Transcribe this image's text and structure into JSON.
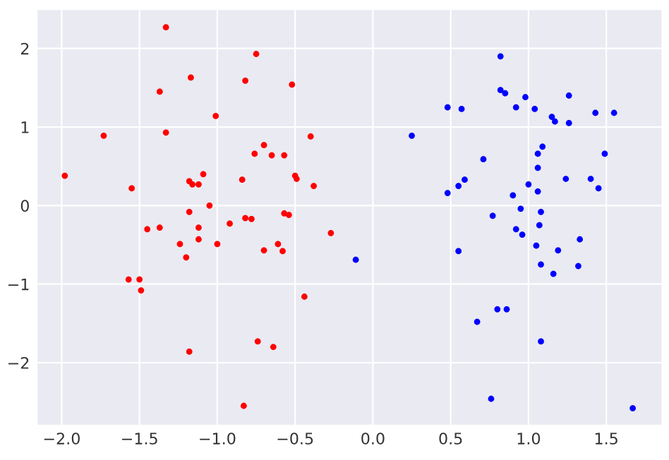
{
  "chart_data": {
    "type": "scatter",
    "xlim": [
      -2.16,
      1.86
    ],
    "ylim": [
      -2.8,
      2.5
    ],
    "xticks": [
      {
        "value": -2.0,
        "label": "−2.0"
      },
      {
        "value": -1.5,
        "label": "−1.5"
      },
      {
        "value": -1.0,
        "label": "−1.0"
      },
      {
        "value": -0.5,
        "label": "−0.5"
      },
      {
        "value": 0.0,
        "label": "0.0"
      },
      {
        "value": 0.5,
        "label": "0.5"
      },
      {
        "value": 1.0,
        "label": "1.0"
      },
      {
        "value": 1.5,
        "label": "1.5"
      }
    ],
    "yticks": [
      {
        "value": -2,
        "label": "−2"
      },
      {
        "value": -1,
        "label": "−1"
      },
      0,
      1,
      2
    ],
    "grid": true,
    "marker": "circle",
    "series": [
      {
        "color": "#ff0000",
        "x": [
          -1.33,
          -0.75,
          -1.17,
          -0.82,
          -0.52,
          -1.37,
          -1.01,
          -1.73,
          -1.33,
          -0.4,
          -0.7,
          -0.76,
          -0.65,
          -0.57,
          -1.98,
          -1.09,
          -0.5,
          -0.49,
          -0.84,
          -1.18,
          -1.16,
          -1.12,
          -0.38,
          -1.55,
          -1.05,
          -1.18,
          -0.57,
          -0.54,
          -0.82,
          -0.78,
          -0.92,
          -0.27,
          -1.45,
          -1.37,
          -1.12,
          -1.12,
          -1.24,
          -1.0,
          -0.61,
          -0.7,
          -0.58,
          -1.2,
          -1.57,
          -1.5,
          -1.49,
          -0.44,
          -0.74,
          -0.64,
          -1.18,
          -0.83
        ],
        "values": [
          2.27,
          1.93,
          1.63,
          1.59,
          1.54,
          1.45,
          1.14,
          0.89,
          0.93,
          0.88,
          0.77,
          0.66,
          0.64,
          0.64,
          0.38,
          0.4,
          0.38,
          0.34,
          0.33,
          0.31,
          0.27,
          0.27,
          0.25,
          0.22,
          0.0,
          -0.08,
          -0.1,
          -0.12,
          -0.16,
          -0.17,
          -0.23,
          -0.35,
          -0.3,
          -0.28,
          -0.28,
          -0.43,
          -0.49,
          -0.49,
          -0.49,
          -0.57,
          -0.58,
          -0.66,
          -0.94,
          -0.94,
          -1.08,
          -1.16,
          -1.73,
          -1.8,
          -1.86,
          -2.55
        ]
      },
      {
        "color": "#0000ff",
        "x": [
          -0.11,
          0.25,
          0.82,
          0.82,
          0.85,
          0.98,
          1.26,
          0.48,
          0.57,
          0.92,
          1.04,
          1.15,
          1.17,
          1.26,
          1.43,
          1.55,
          1.09,
          1.06,
          1.49,
          0.71,
          1.06,
          0.59,
          0.55,
          0.48,
          1.0,
          1.24,
          1.4,
          1.45,
          0.9,
          1.06,
          0.95,
          1.08,
          0.77,
          1.07,
          0.92,
          0.96,
          1.05,
          1.33,
          1.19,
          0.55,
          1.08,
          1.32,
          1.16,
          0.8,
          0.86,
          0.67,
          1.08,
          0.76,
          1.67
        ],
        "values": [
          -0.69,
          0.89,
          1.9,
          1.47,
          1.43,
          1.38,
          1.4,
          1.25,
          1.23,
          1.25,
          1.23,
          1.13,
          1.07,
          1.05,
          1.18,
          1.18,
          0.75,
          0.66,
          0.66,
          0.59,
          0.48,
          0.33,
          0.25,
          0.16,
          0.27,
          0.34,
          0.34,
          0.22,
          0.13,
          0.18,
          -0.04,
          -0.08,
          -0.13,
          -0.25,
          -0.3,
          -0.37,
          -0.51,
          -0.43,
          -0.57,
          -0.58,
          -0.75,
          -0.77,
          -0.87,
          -1.32,
          -1.32,
          -1.48,
          -1.73,
          -2.46,
          -2.58
        ]
      }
    ]
  }
}
